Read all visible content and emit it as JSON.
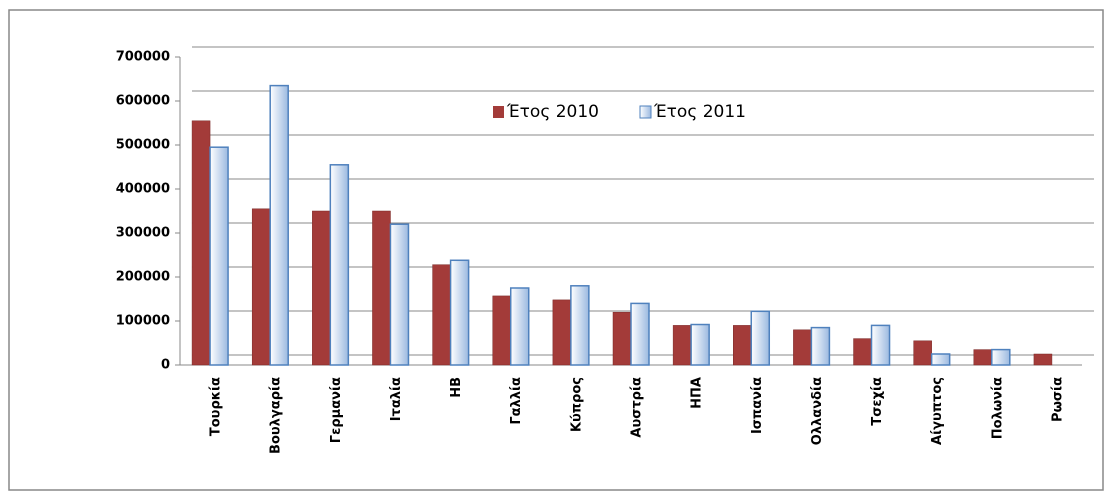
{
  "chart_data": {
    "type": "bar",
    "categories": [
      "Τουρκία",
      "Βουλγαρία",
      "Γερμανία",
      "Ιταλία",
      "ΗΒ",
      "Γαλλία",
      "Κύπρος",
      "Αυστρία",
      "ΗΠΑ",
      "Ισπανία",
      "Ολλανδία",
      "Τσεχία",
      "Αίγυπτος",
      "Πολωνία",
      "Ρωσία"
    ],
    "series": [
      {
        "name": "Έτος 2010",
        "color": "#a33b39",
        "values": [
          555000,
          355000,
          350000,
          350000,
          228000,
          157000,
          148000,
          120000,
          90000,
          90000,
          80000,
          60000,
          55000,
          35000,
          25000
        ]
      },
      {
        "name": "Έτος 2011",
        "color": "#4f81bd",
        "values": [
          495000,
          635000,
          455000,
          320000,
          238000,
          175000,
          180000,
          140000,
          92000,
          122000,
          85000,
          90000,
          25000,
          35000,
          null
        ]
      }
    ],
    "ylim": [
      0,
      700000
    ],
    "yticks": [
      0,
      100000,
      200000,
      300000,
      400000,
      500000,
      600000,
      700000
    ],
    "grid": true
  }
}
